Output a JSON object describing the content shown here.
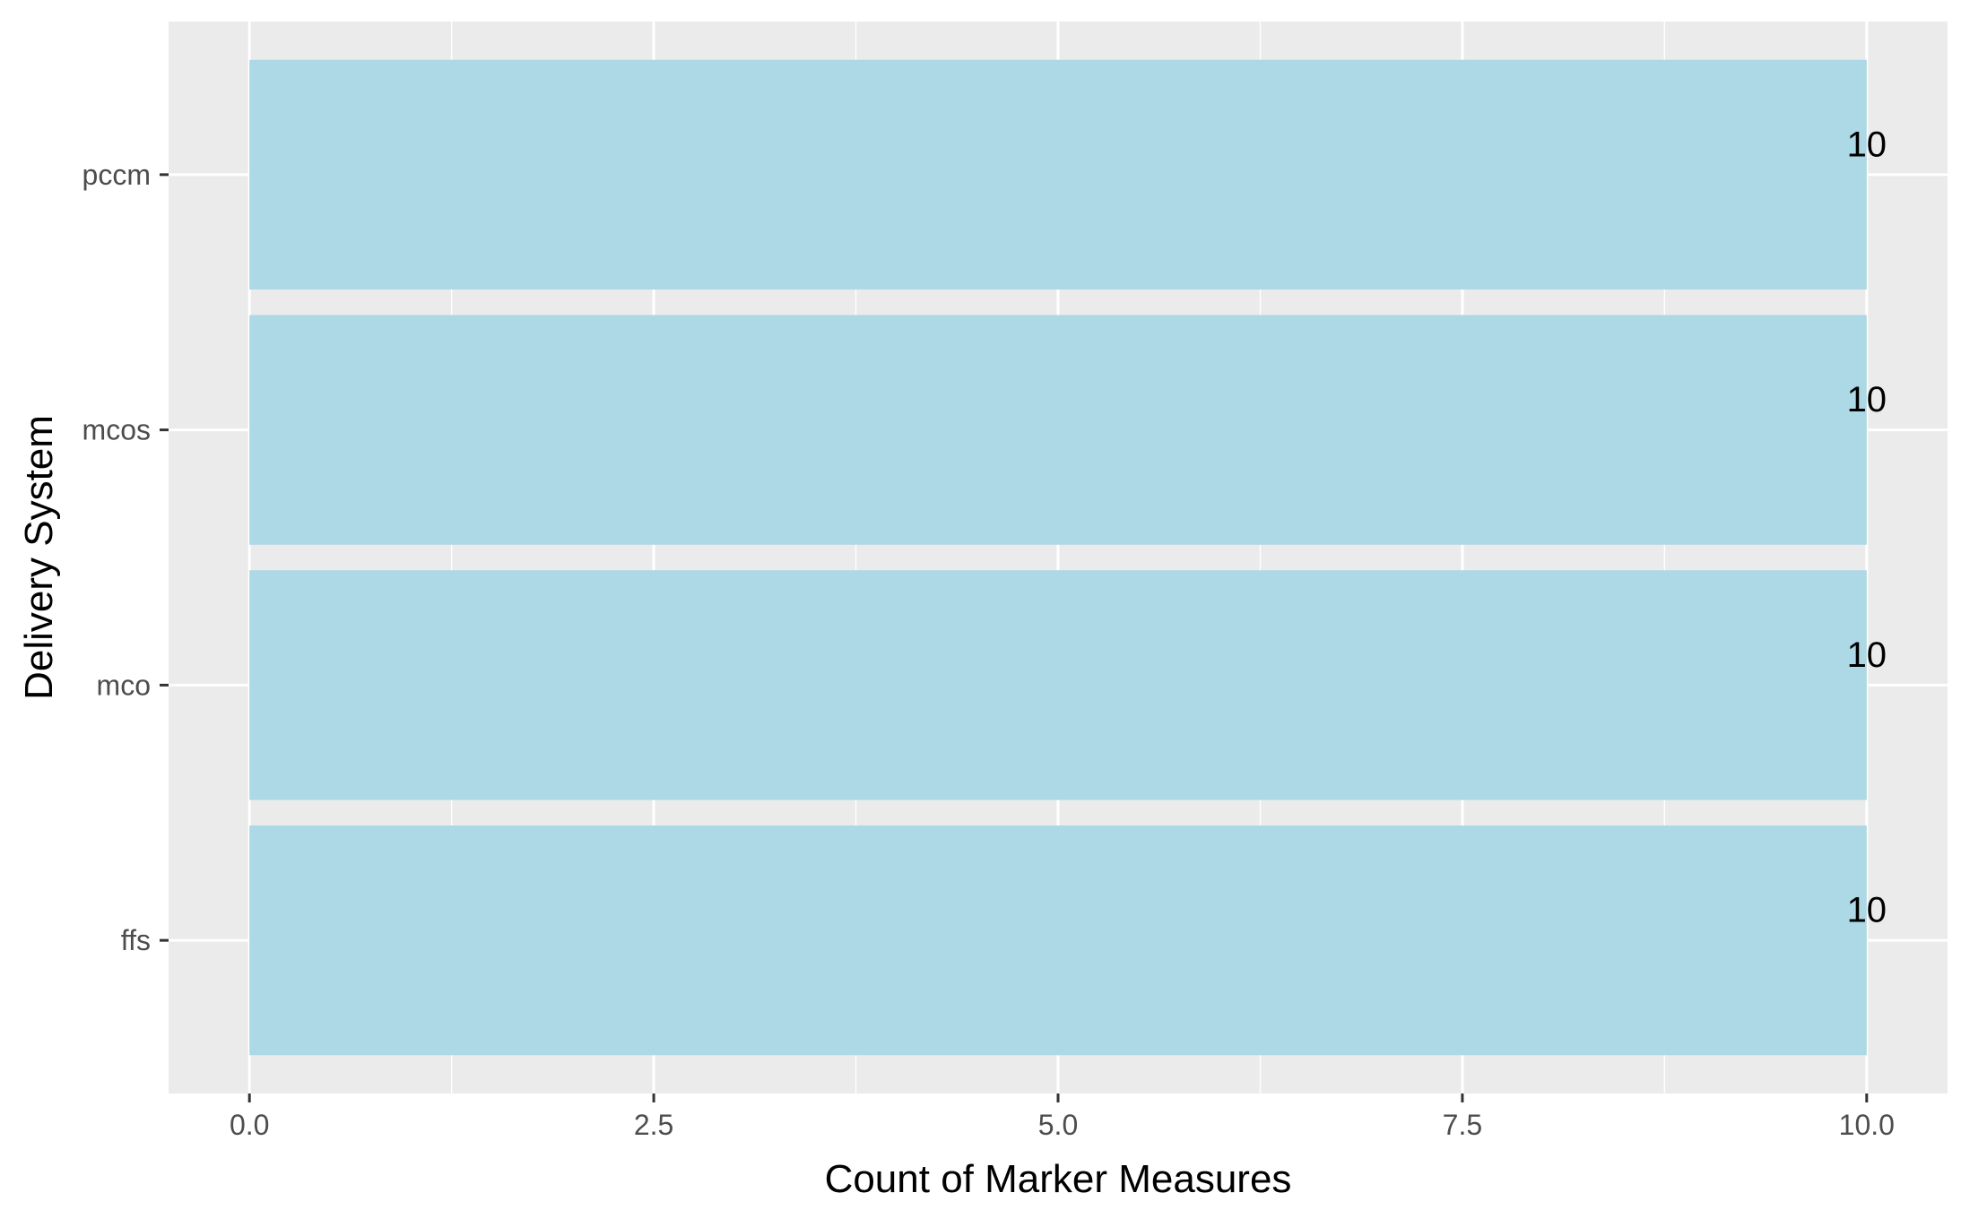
{
  "chart_data": {
    "type": "bar",
    "orientation": "horizontal",
    "categories": [
      "ffs",
      "mco",
      "mcos",
      "pccm"
    ],
    "values": [
      10,
      10,
      10,
      10
    ],
    "data_labels": [
      "10",
      "10",
      "10",
      "10"
    ],
    "title": "",
    "xlabel": "Count of Marker Measures",
    "ylabel": "Delivery System",
    "xlim": [
      -0.5,
      10.5
    ],
    "x_ticks": [
      0.0,
      2.5,
      5.0,
      7.5,
      10.0
    ],
    "x_tick_labels": [
      "0.0",
      "2.5",
      "5.0",
      "7.5",
      "10.0"
    ],
    "grid": true,
    "legend": "none",
    "colors": {
      "panel_background": "#ebebeb",
      "grid_line": "#ffffff",
      "bar_fill": "#add8e6",
      "tick_text": "#4d4d4d",
      "axis_title_text": "#000000",
      "data_label_text": "#000000"
    }
  }
}
